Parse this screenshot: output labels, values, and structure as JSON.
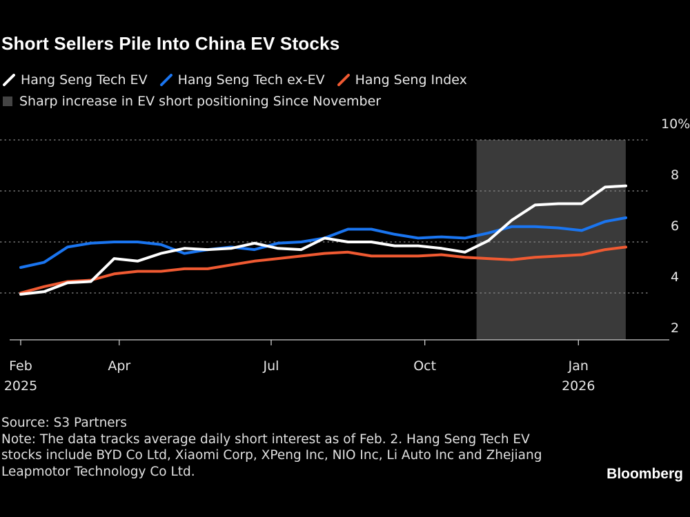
{
  "title": "Short Sellers Pile Into China EV Stocks",
  "legend": [
    {
      "label": "Hang Seng Tech EV",
      "color": "#ffffff"
    },
    {
      "label": "Hang Seng Tech ex-EV",
      "color": "#1a75f0"
    },
    {
      "label": "Hang Seng Index",
      "color": "#f05a32"
    }
  ],
  "shade_legend": {
    "label": "Sharp increase in EV short positioning Since November",
    "color": "#3a3a3a"
  },
  "footer": {
    "source": "Source: S3 Partners",
    "note": "Note: The data tracks average daily short interest as of Feb. 2. Hang Seng Tech EV stocks include BYD Co Ltd, Xiaomi Corp, XPeng Inc, NIO Inc, Li Auto Inc and Zhejiang Leapmotor Technology Co Ltd."
  },
  "brand": "Bloomberg",
  "chart_data": {
    "type": "line",
    "title": "Short Sellers Pile Into China EV Stocks",
    "ylabel": "",
    "xlabel": "",
    "ylim": [
      2,
      10
    ],
    "y_unit": "%",
    "yticks": [
      {
        "value": 10,
        "label": "10%"
      },
      {
        "value": 8,
        "label": "8"
      },
      {
        "value": 6,
        "label": "6"
      },
      {
        "value": 4,
        "label": "4"
      },
      {
        "value": 2,
        "label": "2"
      }
    ],
    "xticks": [
      {
        "date": "2025-02-01",
        "label": "Feb",
        "year": "2025"
      },
      {
        "date": "2025-04-01",
        "label": "Apr",
        "year": ""
      },
      {
        "date": "2025-07-01",
        "label": "Jul",
        "year": ""
      },
      {
        "date": "2025-10-01",
        "label": "Oct",
        "year": ""
      },
      {
        "date": "2026-01-01",
        "label": "Jan",
        "year": "2026"
      }
    ],
    "grid": true,
    "legend_position": "top-left",
    "shaded_region": {
      "start": "2025-11-01",
      "end": "2026-01-31",
      "label": "Sharp increase in EV short positioning Since November"
    },
    "x": [
      "2025-02-01",
      "2025-02-15",
      "2025-03-01",
      "2025-03-15",
      "2025-03-29",
      "2025-04-12",
      "2025-04-26",
      "2025-05-10",
      "2025-05-24",
      "2025-06-07",
      "2025-06-21",
      "2025-07-05",
      "2025-07-19",
      "2025-08-02",
      "2025-08-16",
      "2025-08-30",
      "2025-09-13",
      "2025-09-27",
      "2025-10-11",
      "2025-10-25",
      "2025-11-08",
      "2025-11-22",
      "2025-12-06",
      "2025-12-20",
      "2026-01-03",
      "2026-01-17",
      "2026-01-31"
    ],
    "series": [
      {
        "name": "Hang Seng Tech EV",
        "color": "#ffffff",
        "values": [
          3.95,
          4.05,
          4.4,
          4.45,
          5.35,
          5.25,
          5.55,
          5.75,
          5.7,
          5.75,
          5.95,
          5.75,
          5.7,
          6.15,
          6.0,
          6.0,
          5.85,
          5.85,
          5.75,
          5.6,
          6.05,
          6.85,
          7.45,
          7.5,
          7.5,
          8.15,
          8.2
        ]
      },
      {
        "name": "Hang Seng Tech ex-EV",
        "color": "#1a75f0",
        "values": [
          5.0,
          5.2,
          5.8,
          5.95,
          6.0,
          6.0,
          5.9,
          5.55,
          5.7,
          5.8,
          5.7,
          5.95,
          6.0,
          6.15,
          6.5,
          6.5,
          6.3,
          6.15,
          6.2,
          6.15,
          6.35,
          6.6,
          6.6,
          6.55,
          6.45,
          6.8,
          6.95
        ]
      },
      {
        "name": "Hang Seng Index",
        "color": "#f05a32",
        "values": [
          4.0,
          4.25,
          4.45,
          4.5,
          4.75,
          4.85,
          4.85,
          4.95,
          4.95,
          5.1,
          5.25,
          5.35,
          5.45,
          5.55,
          5.6,
          5.45,
          5.45,
          5.45,
          5.5,
          5.4,
          5.35,
          5.3,
          5.4,
          5.45,
          5.5,
          5.7,
          5.8
        ]
      }
    ]
  }
}
